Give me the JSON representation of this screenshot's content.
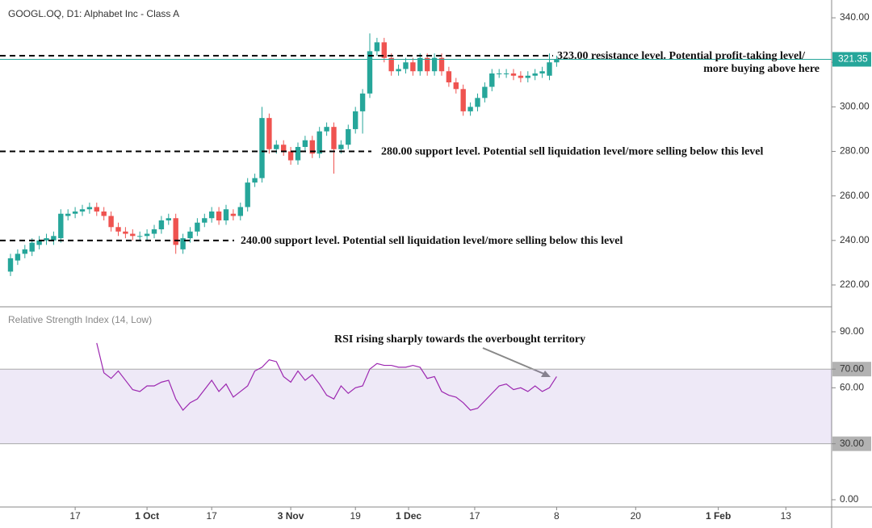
{
  "chart_data": [
    {
      "type": "candlestick",
      "title": "GOOGL.OQ, D1: Alphabet Inc - Class A",
      "up_color": "#26a69a",
      "down_color": "#ef5350",
      "x": [
        0,
        1,
        2,
        3,
        4,
        5,
        6,
        7,
        8,
        9,
        10,
        11,
        12,
        13,
        14,
        15,
        16,
        17,
        18,
        19,
        20,
        21,
        22,
        23,
        24,
        25,
        26,
        27,
        28,
        29,
        30,
        31,
        32,
        33,
        34,
        35,
        36,
        37,
        38,
        39,
        40,
        41,
        42,
        43,
        44,
        45,
        46,
        47,
        48,
        49,
        50,
        51,
        52,
        53,
        54,
        55,
        56,
        57,
        58,
        59,
        60,
        61,
        62,
        63,
        64,
        65,
        66,
        67,
        68,
        69,
        70,
        71,
        72,
        73,
        74,
        75,
        76
      ],
      "open": [
        226,
        231,
        234,
        235,
        238,
        240,
        240,
        241,
        251,
        252,
        253,
        254,
        255,
        253,
        251,
        246,
        244,
        243,
        242,
        242,
        243,
        245,
        249,
        250,
        236,
        241,
        244,
        248,
        250,
        253,
        249,
        252,
        251,
        255,
        266,
        268,
        295,
        281,
        283,
        280,
        276,
        282,
        285,
        279,
        289,
        291,
        281,
        283,
        290,
        298,
        306,
        325,
        329,
        322,
        316,
        317,
        320,
        316,
        322,
        316,
        322,
        316,
        311,
        308,
        298,
        300,
        304,
        309,
        315,
        315,
        315,
        314,
        313,
        314,
        315,
        314,
        320
      ],
      "high": [
        234,
        236,
        238,
        241,
        242,
        243,
        244,
        254,
        254,
        255,
        256,
        257,
        257,
        255,
        253,
        248,
        246,
        245,
        244,
        245,
        247,
        251,
        252,
        252,
        243,
        246,
        250,
        252,
        255,
        255,
        256,
        254,
        257,
        268,
        270,
        300,
        297,
        285,
        285,
        282,
        284,
        287,
        287,
        291,
        293,
        293,
        285,
        292,
        300,
        308,
        333,
        331,
        331,
        324,
        319,
        322,
        322,
        324,
        324,
        324,
        324,
        318,
        313,
        310,
        302,
        306,
        311,
        317,
        317,
        317,
        317,
        316,
        316,
        317,
        318,
        324,
        323
      ],
      "low": [
        224,
        229,
        232,
        233,
        236,
        238,
        238,
        239,
        249,
        250,
        251,
        252,
        251,
        249,
        244,
        242,
        241,
        240,
        240,
        240,
        241,
        243,
        247,
        234,
        234,
        239,
        242,
        246,
        248,
        247,
        247,
        249,
        249,
        253,
        264,
        266,
        279,
        279,
        278,
        274,
        274,
        280,
        277,
        277,
        287,
        270,
        279,
        281,
        288,
        288,
        304,
        323,
        320,
        314,
        314,
        315,
        314,
        314,
        314,
        314,
        314,
        309,
        306,
        296,
        296,
        298,
        302,
        307,
        313,
        313,
        312,
        311,
        311,
        312,
        313,
        312,
        318
      ],
      "close": [
        232,
        234,
        236,
        239,
        240,
        241,
        242,
        252,
        252,
        253,
        254,
        255,
        253,
        251,
        246,
        244,
        243,
        242,
        242,
        243,
        245,
        249,
        250,
        238,
        241,
        244,
        248,
        250,
        253,
        249,
        254,
        251,
        255,
        266,
        268,
        295,
        281,
        283,
        280,
        276,
        282,
        285,
        279,
        289,
        291,
        281,
        283,
        290,
        298,
        306,
        325,
        329,
        322,
        316,
        317,
        320,
        316,
        322,
        316,
        322,
        316,
        311,
        308,
        298,
        300,
        304,
        309,
        315,
        315,
        315,
        314,
        313,
        314,
        315,
        316,
        320,
        321.35
      ],
      "xlim": [
        -1.46,
        114.27
      ],
      "ylim": [
        210.2,
        348
      ],
      "yticks": [
        {
          "value": 220,
          "label": "220.00"
        },
        {
          "value": 240,
          "label": "240.00"
        },
        {
          "value": 260,
          "label": "260.00"
        },
        {
          "value": 280,
          "label": "280.00"
        },
        {
          "value": 300,
          "label": "300.00"
        },
        {
          "value": 320,
          "label": "320.00"
        },
        {
          "value": 340,
          "label": "340.00"
        }
      ],
      "last_price": {
        "value": 321.35,
        "label": "321.35",
        "color": "#26a69a"
      },
      "levels": [
        {
          "value": 323,
          "lines": [
            "323.00 resistance level. Potential profit-taking level/",
            "more buying above here"
          ]
        },
        {
          "value": 280,
          "lines": [
            "280.00 support level. Potential sell liquidation level/more selling below this level"
          ]
        },
        {
          "value": 240,
          "lines": [
            "240.00 support level. Potential sell liquidation level/more selling below this level"
          ]
        }
      ]
    },
    {
      "type": "line",
      "title": "Relative Strength Index (14, Low)",
      "color": "#9c27b0",
      "x": [
        0,
        1,
        2,
        3,
        4,
        5,
        6,
        7,
        8,
        9,
        10,
        11,
        12,
        13,
        14,
        15,
        16,
        17,
        18,
        19,
        20,
        21,
        22,
        23,
        24,
        25,
        26,
        27,
        28,
        29,
        30,
        31,
        32,
        33,
        34,
        35,
        36,
        37,
        38,
        39,
        40,
        41,
        42,
        43,
        44,
        45,
        46,
        47,
        48,
        49,
        50,
        51,
        52,
        53,
        54,
        55,
        56,
        57,
        58,
        59,
        60,
        61,
        62,
        63,
        64,
        65,
        66,
        67,
        68,
        69,
        70,
        71,
        72,
        73,
        74,
        75,
        76
      ],
      "values": [
        null,
        null,
        null,
        null,
        null,
        null,
        null,
        null,
        null,
        null,
        null,
        null,
        84,
        68,
        65,
        69,
        64,
        59,
        58,
        61,
        61,
        63,
        64,
        54,
        48,
        52,
        54,
        59,
        64,
        58,
        62,
        55,
        58,
        61,
        69,
        71,
        75,
        74,
        66,
        63,
        69,
        64,
        67,
        62,
        56,
        54,
        61,
        57,
        60,
        61,
        70,
        73,
        72,
        72,
        71,
        71,
        72,
        71,
        65,
        66,
        58,
        56,
        55,
        52,
        48,
        49,
        53,
        57,
        61,
        62,
        59,
        60,
        58,
        61,
        58,
        60,
        66
      ],
      "band": [
        30,
        70
      ],
      "xlim": [
        -1.46,
        114.27
      ],
      "ylim": [
        -3.9,
        103.4
      ],
      "yticks": [
        {
          "value": 0,
          "label": "0.00"
        },
        {
          "value": 30,
          "label": "30.00"
        },
        {
          "value": 60,
          "label": "60.00"
        },
        {
          "value": 70,
          "label": "70.00"
        },
        {
          "value": 90,
          "label": "90.00"
        }
      ],
      "xticks": [
        {
          "value": 9,
          "label": "17"
        },
        {
          "value": 19,
          "label": "1 Oct"
        },
        {
          "value": 28,
          "label": "17"
        },
        {
          "value": 39,
          "label": "3 Nov"
        },
        {
          "value": 48,
          "label": "19"
        },
        {
          "value": 55.4,
          "label": "1 Dec"
        },
        {
          "value": 64.6,
          "label": "17"
        },
        {
          "value": 76,
          "label": "8"
        },
        {
          "value": 87,
          "label": "20"
        },
        {
          "value": 98.5,
          "label": "1 Feb"
        },
        {
          "value": 107.9,
          "label": "13"
        }
      ],
      "annotation": "RSI rising sharply towards the overbought territory"
    }
  ]
}
